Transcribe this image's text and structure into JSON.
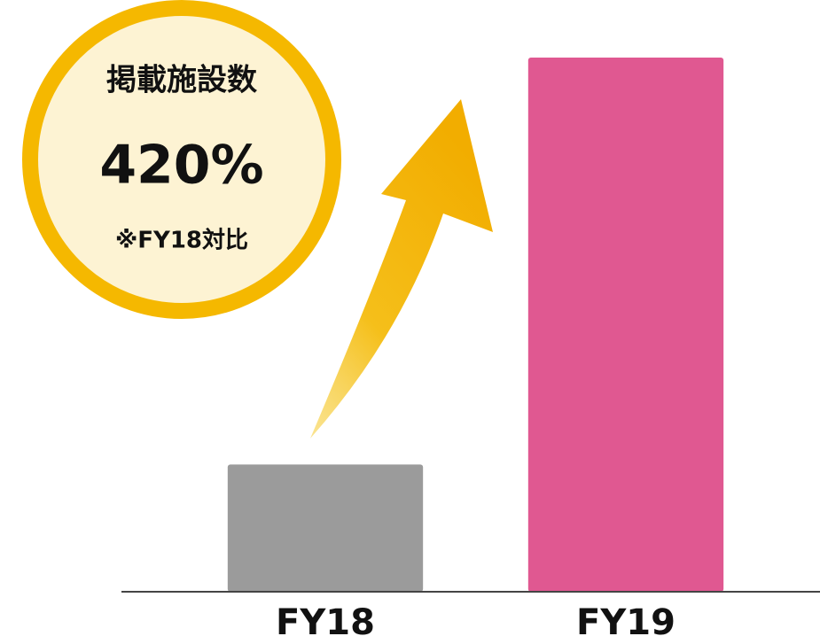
{
  "chart_data": {
    "type": "bar",
    "categories": [
      "FY18",
      "FY19"
    ],
    "values": [
      100,
      420
    ],
    "colors": [
      "#9b9b9b",
      "#e05891"
    ],
    "annotations": [
      "掲載施設数",
      "420%",
      "※FY18対比"
    ]
  }
}
